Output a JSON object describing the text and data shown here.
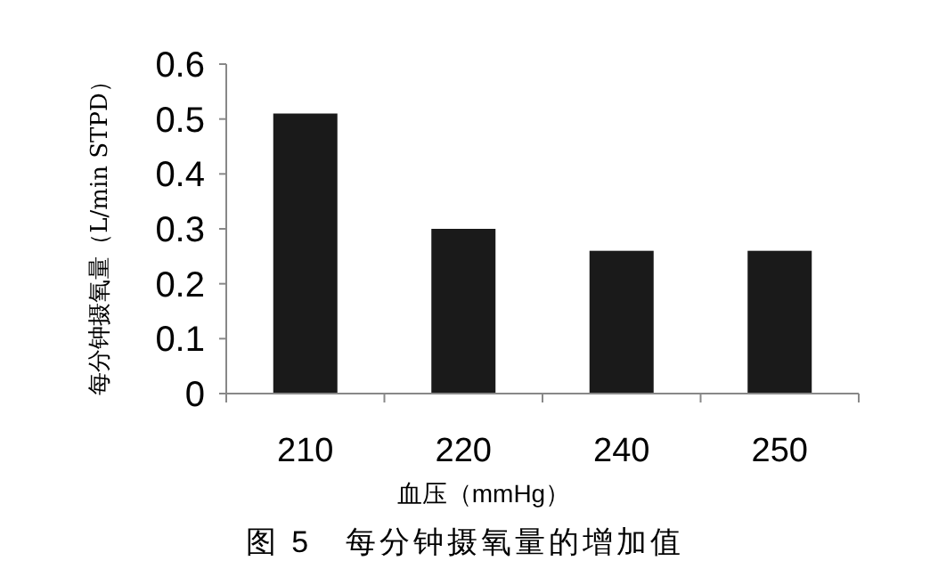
{
  "chart_data": {
    "type": "bar",
    "title": "图 5　每分钟摄氧量的增加值",
    "xlabel": "血压（mmHg）",
    "ylabel": "每分钟摄氧量（L/min STPD）",
    "categories": [
      "210",
      "220",
      "240",
      "250"
    ],
    "values": [
      0.51,
      0.3,
      0.26,
      0.26
    ],
    "color": "#1a1a1a",
    "ylim": [
      0,
      0.6
    ],
    "yticks": [
      0,
      0.1,
      0.2,
      0.3,
      0.4,
      0.5,
      0.6
    ],
    "grid": false
  }
}
